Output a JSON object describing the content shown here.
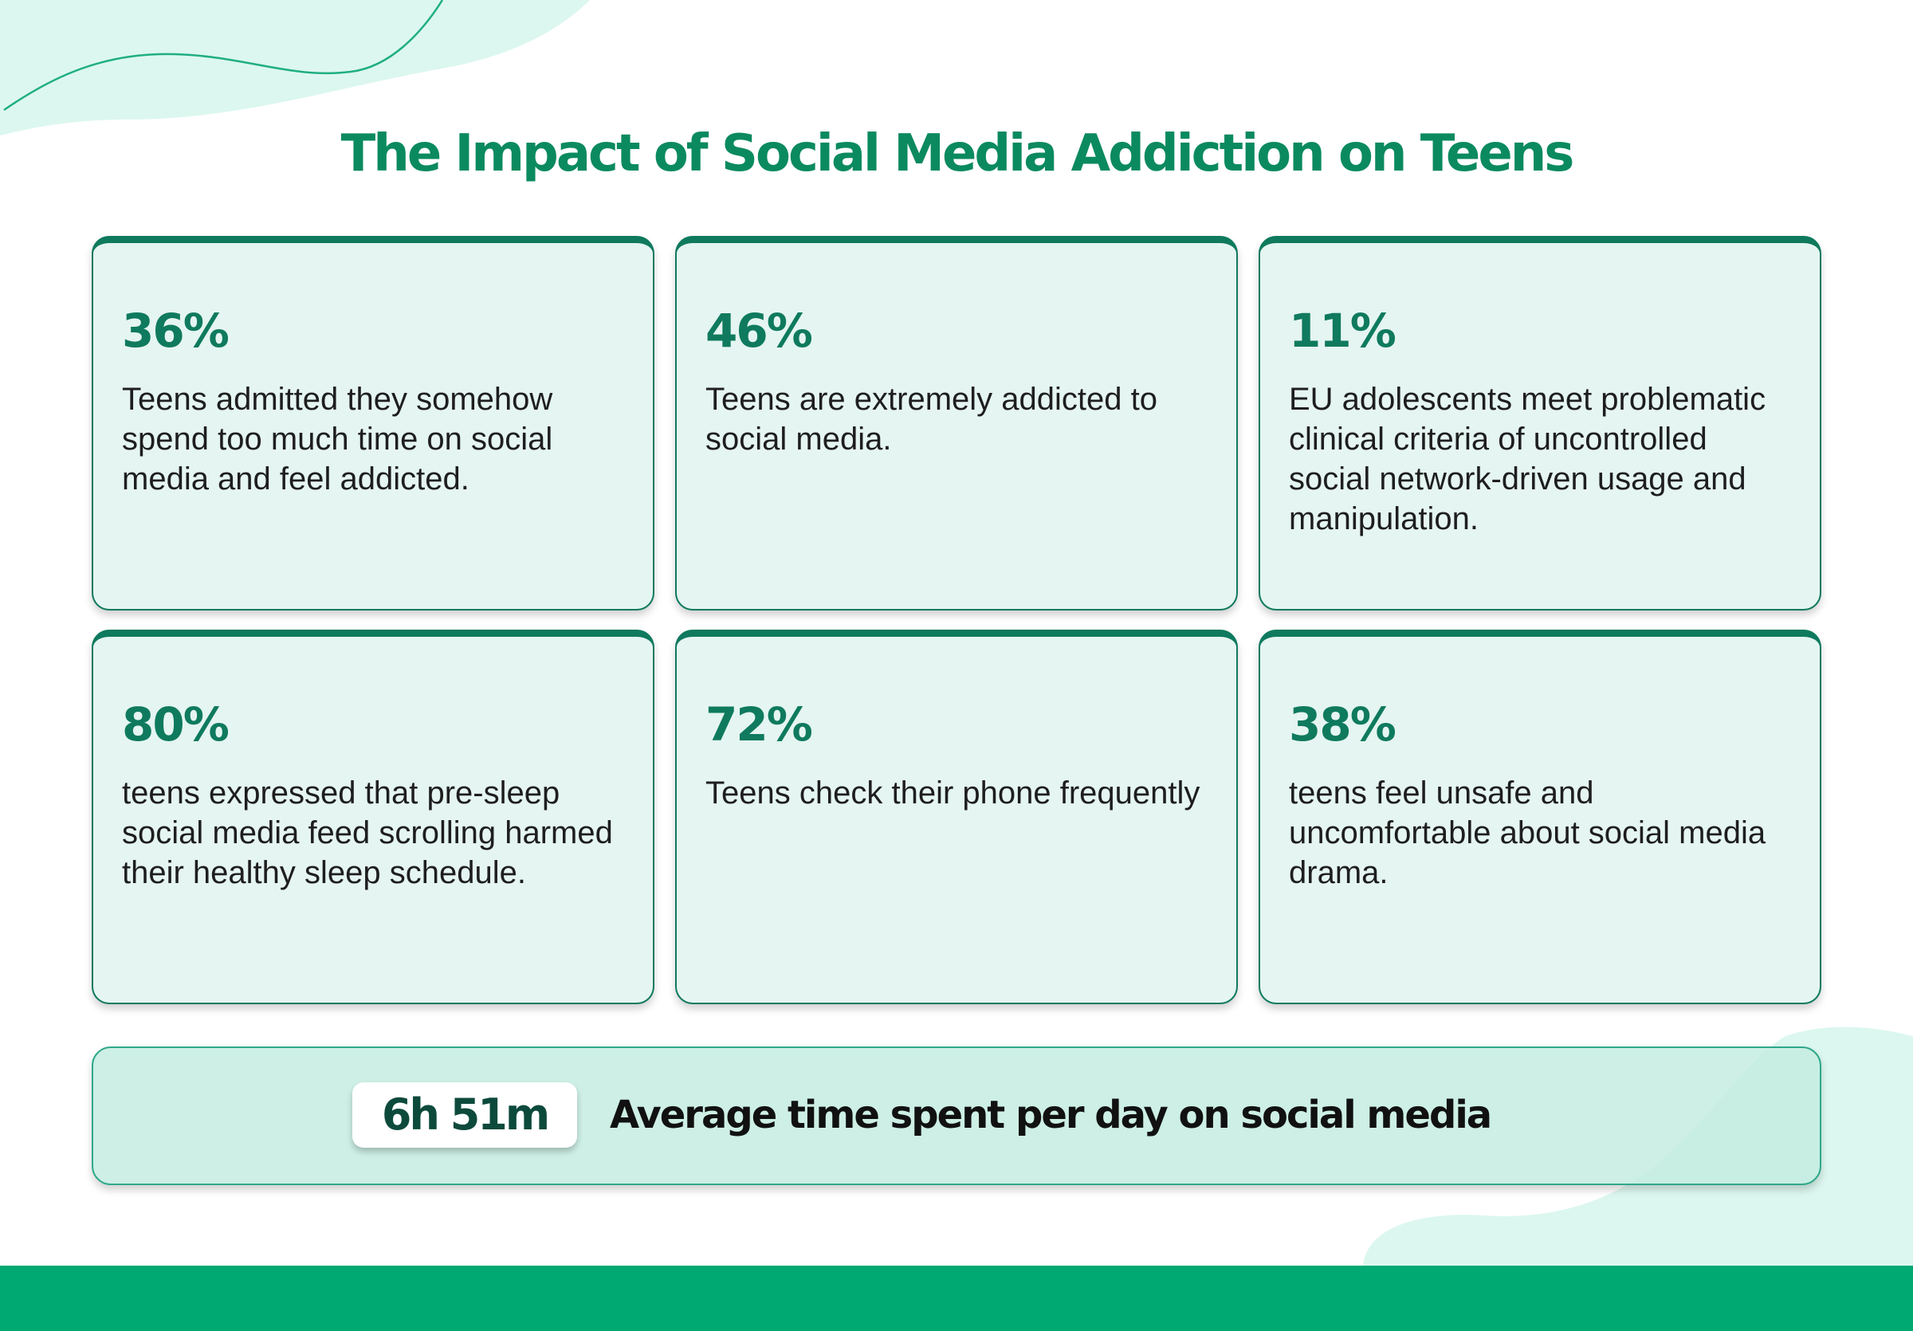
{
  "title": "The Impact of Social Media Addiction on Teens",
  "cards": [
    {
      "stat": "36%",
      "text": "Teens admitted they somehow spend too much time on social media and feel addicted."
    },
    {
      "stat": "46%",
      "text": "Teens are extremely addicted to social media."
    },
    {
      "stat": "11%",
      "text": "EU adolescents meet problematic clinical criteria of uncontrolled social network-driven usage and manipulation."
    },
    {
      "stat": "80%",
      "text": "teens expressed that pre-sleep social media feed scrolling harmed their healthy sleep schedule."
    },
    {
      "stat": "72%",
      "text": "Teens check their phone frequently"
    },
    {
      "stat": "38%",
      "text": "teens feel unsafe and uncomfortable about social media drama."
    }
  ],
  "banner": {
    "value": "6h 51m",
    "label": "Average time spent per day on social media"
  },
  "colors": {
    "accent": "#0f7a5e",
    "title": "#0b8a5f",
    "card_bg": "#e5f5f1",
    "footer": "#00a872",
    "decor": "#dcf7ef"
  }
}
